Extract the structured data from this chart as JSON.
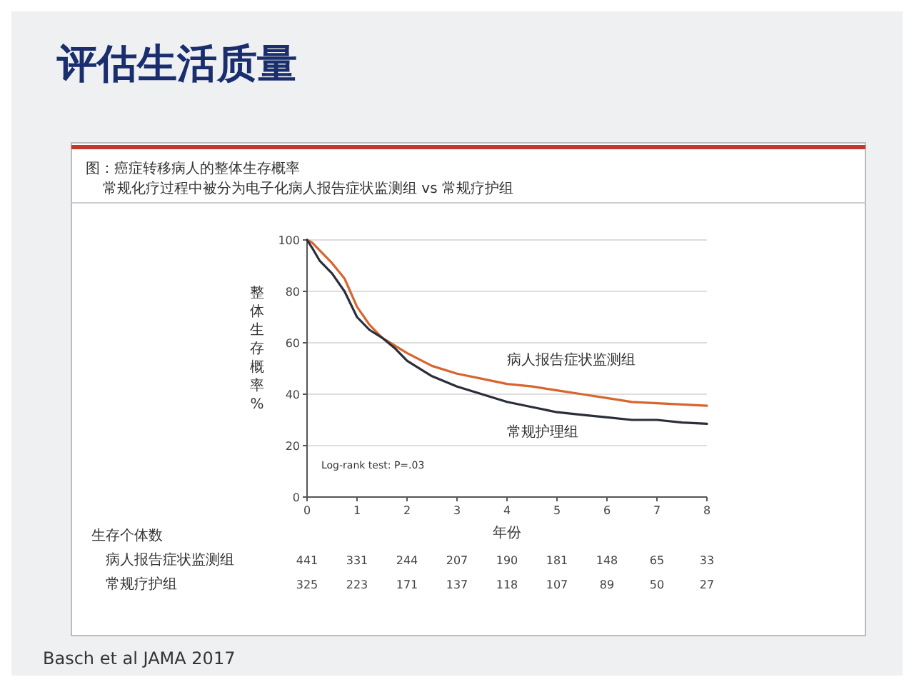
{
  "chart_data": [
    {
      "type": "line",
      "title": "评估生活质量",
      "subtitle": "图：癌症转移病人的整体生存概率",
      "annotations": [
        "常规化疗过程中被分为电子化病人报告症状监测组 vs 常规疗护组",
        "Log-rank test: P=.03",
        "Basch et al JAMA 2017"
      ],
      "xlabel": "年份",
      "ylabel": "整体生存概率%",
      "x": [
        0,
        0.1,
        0.25,
        0.5,
        0.75,
        1,
        1.25,
        1.5,
        1.75,
        2,
        2.5,
        3,
        3.5,
        4,
        4.5,
        5,
        5.5,
        6,
        6.5,
        7,
        7.5,
        8
      ],
      "series": [
        {
          "name": "病人报告症状监测组",
          "color": "#d8642f",
          "values": [
            100,
            99,
            96,
            91,
            85,
            74,
            67,
            62,
            59,
            56,
            51,
            48,
            46,
            44,
            43,
            41.5,
            40,
            38.5,
            37,
            36.5,
            36,
            35.5
          ]
        },
        {
          "name": "常规护理组",
          "color": "#2a2e3a",
          "values": [
            100,
            97,
            92,
            87,
            80,
            70,
            65,
            62,
            58,
            53,
            47,
            43,
            40,
            37,
            35,
            33,
            32,
            31,
            30,
            30,
            29,
            28.5
          ]
        }
      ],
      "xlim": [
        0,
        8
      ],
      "xticks": [
        0,
        1,
        2,
        3,
        4,
        5,
        6,
        7,
        8
      ],
      "ylim": [
        0,
        100
      ],
      "yticks": [
        0,
        20,
        40,
        60,
        80,
        100
      ],
      "grid": "y"
    },
    {
      "type": "heatmap",
      "title": "生存个体数",
      "categories": [
        null,
        null,
        null,
        null,
        null,
        null,
        null,
        null,
        null
      ],
      "y_categories": [
        "病人报告症状监测组",
        "常规疗护组"
      ],
      "data_labels": true,
      "cells": [
        [
          441,
          331,
          244,
          207,
          190,
          181,
          148,
          65,
          33
        ],
        [
          325,
          223,
          171,
          137,
          118,
          107,
          89,
          50,
          27
        ]
      ]
    }
  ]
}
